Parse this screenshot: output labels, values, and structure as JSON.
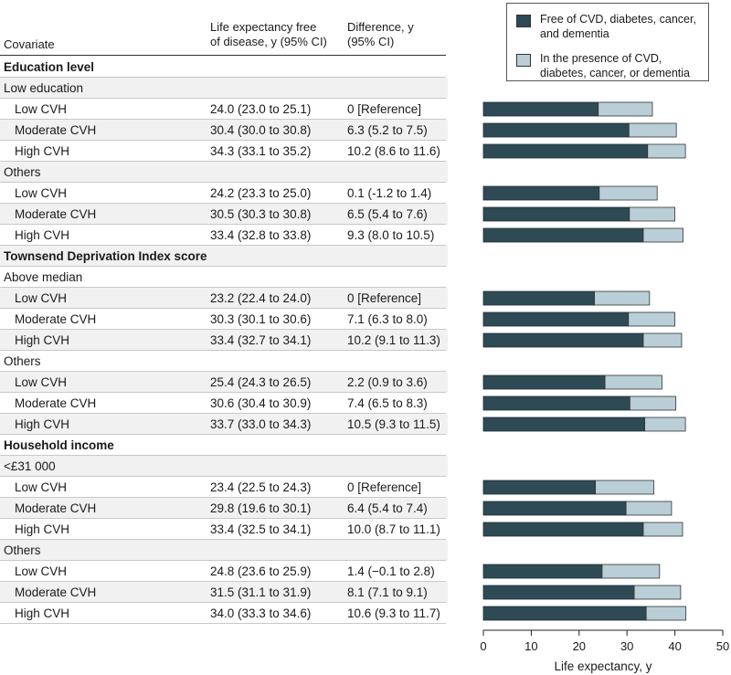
{
  "table": {
    "header": {
      "covariate": "Covariate",
      "le_line1": "Life expectancy free",
      "le_line2": "of disease, y (95% CI)",
      "diff_line1": "Difference, y",
      "diff_line2": "(95% CI)"
    },
    "rows": [
      {
        "type": "section",
        "label": "Education level"
      },
      {
        "type": "group",
        "label": "Low education"
      },
      {
        "type": "data",
        "label": "Low CVH",
        "le": "24.0 (23.0 to 25.1)",
        "diff": "0 [Reference]",
        "free": 24.0,
        "total": 35.3
      },
      {
        "type": "data",
        "label": "Moderate CVH",
        "le": "30.4 (30.0 to 30.8)",
        "diff": "6.3 (5.2 to 7.5)",
        "free": 30.4,
        "total": 40.3
      },
      {
        "type": "data",
        "label": "High CVH",
        "le": "34.3 (33.1 to 35.2)",
        "diff": "10.2 (8.6 to 11.6)",
        "free": 34.3,
        "total": 42.2
      },
      {
        "type": "group",
        "label": "Others"
      },
      {
        "type": "data",
        "label": "Low CVH",
        "le": "24.2 (23.3 to 25.0)",
        "diff": "0.1 (-1.2 to 1.4)",
        "free": 24.2,
        "total": 36.3
      },
      {
        "type": "data",
        "label": "Moderate CVH",
        "le": "30.5 (30.3 to 30.8)",
        "diff": "6.5 (5.4 to 7.6)",
        "free": 30.5,
        "total": 40.0
      },
      {
        "type": "data",
        "label": "High CVH",
        "le": "33.4 (32.8 to 33.8)",
        "diff": "9.3 (8.0 to 10.5)",
        "free": 33.4,
        "total": 41.7
      },
      {
        "type": "section",
        "label": "Townsend Deprivation Index score"
      },
      {
        "type": "group",
        "label": "Above median"
      },
      {
        "type": "data",
        "label": "Low CVH",
        "le": "23.2 (22.4 to 24.0)",
        "diff": "0 [Reference]",
        "free": 23.2,
        "total": 34.7
      },
      {
        "type": "data",
        "label": "Moderate CVH",
        "le": "30.3 (30.1 to 30.6)",
        "diff": "7.1 (6.3 to 8.0)",
        "free": 30.3,
        "total": 40.0
      },
      {
        "type": "data",
        "label": "High CVH",
        "le": "33.4 (32.7 to 34.1)",
        "diff": "10.2 (9.1 to 11.3)",
        "free": 33.4,
        "total": 41.4
      },
      {
        "type": "group",
        "label": "Others"
      },
      {
        "type": "data",
        "label": "Low CVH",
        "le": "25.4 (24.3 to 26.5)",
        "diff": "2.2 (0.9 to 3.6)",
        "free": 25.4,
        "total": 37.3
      },
      {
        "type": "data",
        "label": "Moderate CVH",
        "le": "30.6 (30.4 to 30.9)",
        "diff": "7.4 (6.5 to 8.3)",
        "free": 30.6,
        "total": 40.2
      },
      {
        "type": "data",
        "label": "High CVH",
        "le": "33.7 (33.0 to 34.3)",
        "diff": "10.5 (9.3 to 11.5)",
        "free": 33.7,
        "total": 42.2
      },
      {
        "type": "section",
        "label": "Household income"
      },
      {
        "type": "group",
        "label": "<£31 000"
      },
      {
        "type": "data",
        "label": "Low CVH",
        "le": "23.4 (22.5 to 24.3)",
        "diff": "0 [Reference]",
        "free": 23.4,
        "total": 35.6
      },
      {
        "type": "data",
        "label": "Moderate CVH",
        "le": "29.8 (19.6 to 30.1)",
        "diff": "6.4 (5.4 to 7.4)",
        "free": 29.8,
        "total": 39.3
      },
      {
        "type": "data",
        "label": "High CVH",
        "le": "33.4 (32.5 to 34.1)",
        "diff": "10.0 (8.7 to 11.1)",
        "free": 33.4,
        "total": 41.6
      },
      {
        "type": "group",
        "label": "Others"
      },
      {
        "type": "data",
        "label": "Low CVH",
        "le": "24.8 (23.6 to 25.9)",
        "diff": "1.4 (−0.1 to 2.8)",
        "free": 24.8,
        "total": 36.8
      },
      {
        "type": "data",
        "label": "Moderate CVH",
        "le": "31.5 (31.1 to 31.9)",
        "diff": "8.1 (7.1 to 9.1)",
        "free": 31.5,
        "total": 41.2
      },
      {
        "type": "data",
        "label": "High CVH",
        "le": "34.0 (33.3 to 34.6)",
        "diff": "10.6 (9.3 to 11.7)",
        "free": 34.0,
        "total": 42.3
      }
    ]
  },
  "chart_data": {
    "type": "bar",
    "orientation": "horizontal-stacked",
    "xlabel": "Life expectancy, y",
    "xlim": [
      0,
      50
    ],
    "xticks": [
      0,
      10,
      20,
      30,
      40,
      50
    ],
    "legend_position": "top-right",
    "series": [
      {
        "name": "Free of CVD, diabetes, cancer, and dementia",
        "color": "#2e4a55"
      },
      {
        "name": "In the presence of CVD, diabetes, cancer, or dementia",
        "color": "#b9ced6"
      }
    ]
  }
}
